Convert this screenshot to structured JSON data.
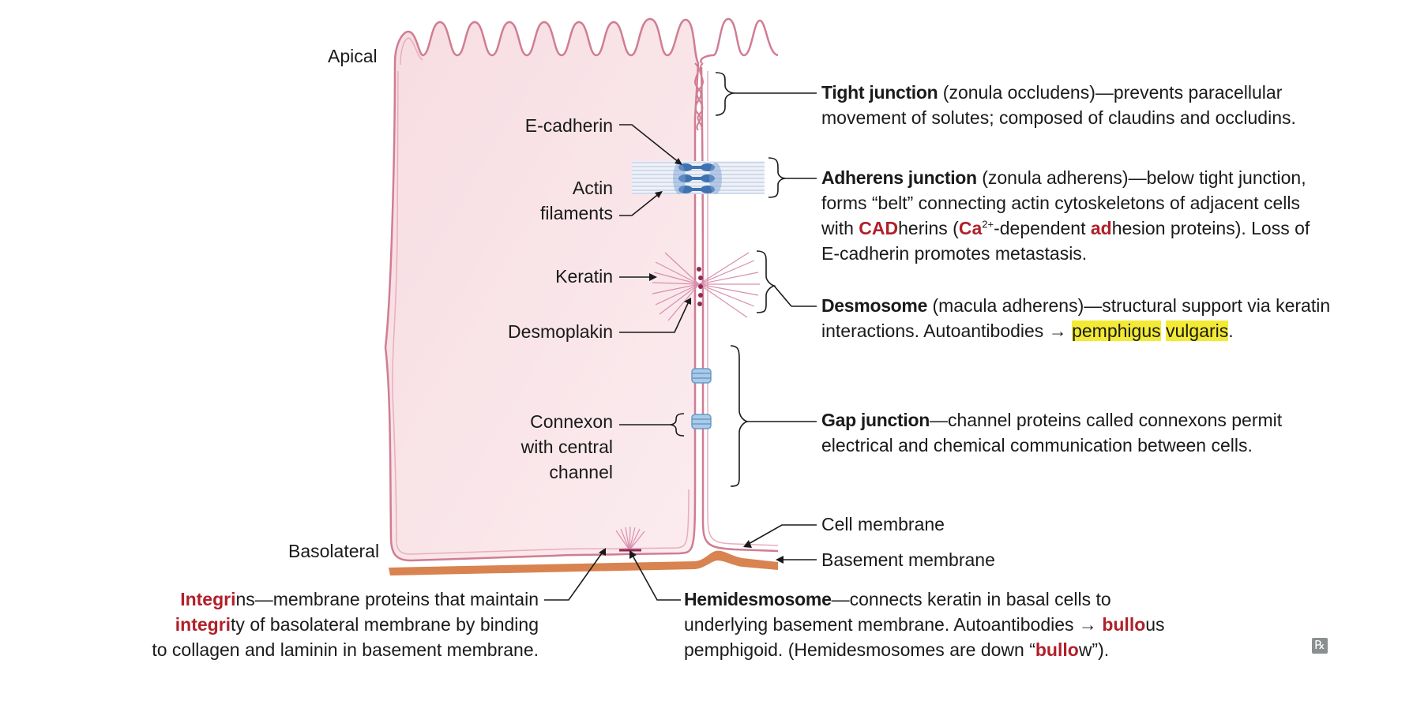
{
  "labels": {
    "apical": "Apical",
    "basolateral": "Basolateral",
    "e_cadherin": "E-cadherin",
    "actin_line1": "Actin",
    "actin_line2": "filaments",
    "keratin": "Keratin",
    "desmoplakin": "Desmoplakin",
    "connexon_line1": "Connexon",
    "connexon_line2": "with central",
    "connexon_line3": "channel",
    "cell_membrane": "Cell membrane",
    "basement_membrane": "Basement membrane"
  },
  "tight": {
    "title": "Tight junction",
    "l1": " (zonula occludens)—prevents paracellular",
    "l2": "movement of solutes; composed of claudins and occludins."
  },
  "adherens": {
    "title": "Adherens junction",
    "l1": " (zonula adherens)—below tight junction,",
    "l2": "forms “belt” connecting actin cytoskeletons of adjacent cells",
    "l3a": "with ",
    "l3b": "CAD",
    "l3c": "herins (",
    "l3d": "Ca",
    "l3e": "2+",
    "l3f": "-dependent ",
    "l3g": "ad",
    "l3h": "hesion proteins). Loss of",
    "l4": "E-cadherin promotes metastasis."
  },
  "desmosome": {
    "title": "Desmosome",
    "l1": " (macula adherens)—structural support via keratin",
    "l2a": "interactions. Autoantibodies → ",
    "l2b": "pemphigus",
    "l2c": " ",
    "l2d": "vulgaris",
    "l2e": "."
  },
  "gap": {
    "title": "Gap junction",
    "l1": "—channel proteins called connexons permit",
    "l2": "electrical and chemical communication between cells."
  },
  "integrins": {
    "l1a": "Integri",
    "l1b": "ns—membrane proteins that maintain",
    "l2a": "integri",
    "l2b": "ty of basolateral membrane by binding",
    "l3": "to collagen and laminin in basement membrane."
  },
  "hemidesmosome": {
    "title": "Hemidesmosome",
    "l1": "—connects keratin in basal cells to",
    "l2a": "underlying basement membrane. Autoantibodies → ",
    "l2b": "bullo",
    "l2c": "us",
    "l3a": "pemphigoid. (Hemidesmosomes are down “",
    "l3b": "bullo",
    "l3c": "w”)."
  },
  "badge": "℞",
  "colors": {
    "cell_fill": "#f8e3e7",
    "membrane": "#d07d93",
    "basement": "#d88350",
    "cadherin": "#3f72b0",
    "connexon": "#a9cbe9",
    "keratin": "#cf6f95",
    "accent_red": "#b0202a",
    "highlight": "#f3ea36"
  }
}
